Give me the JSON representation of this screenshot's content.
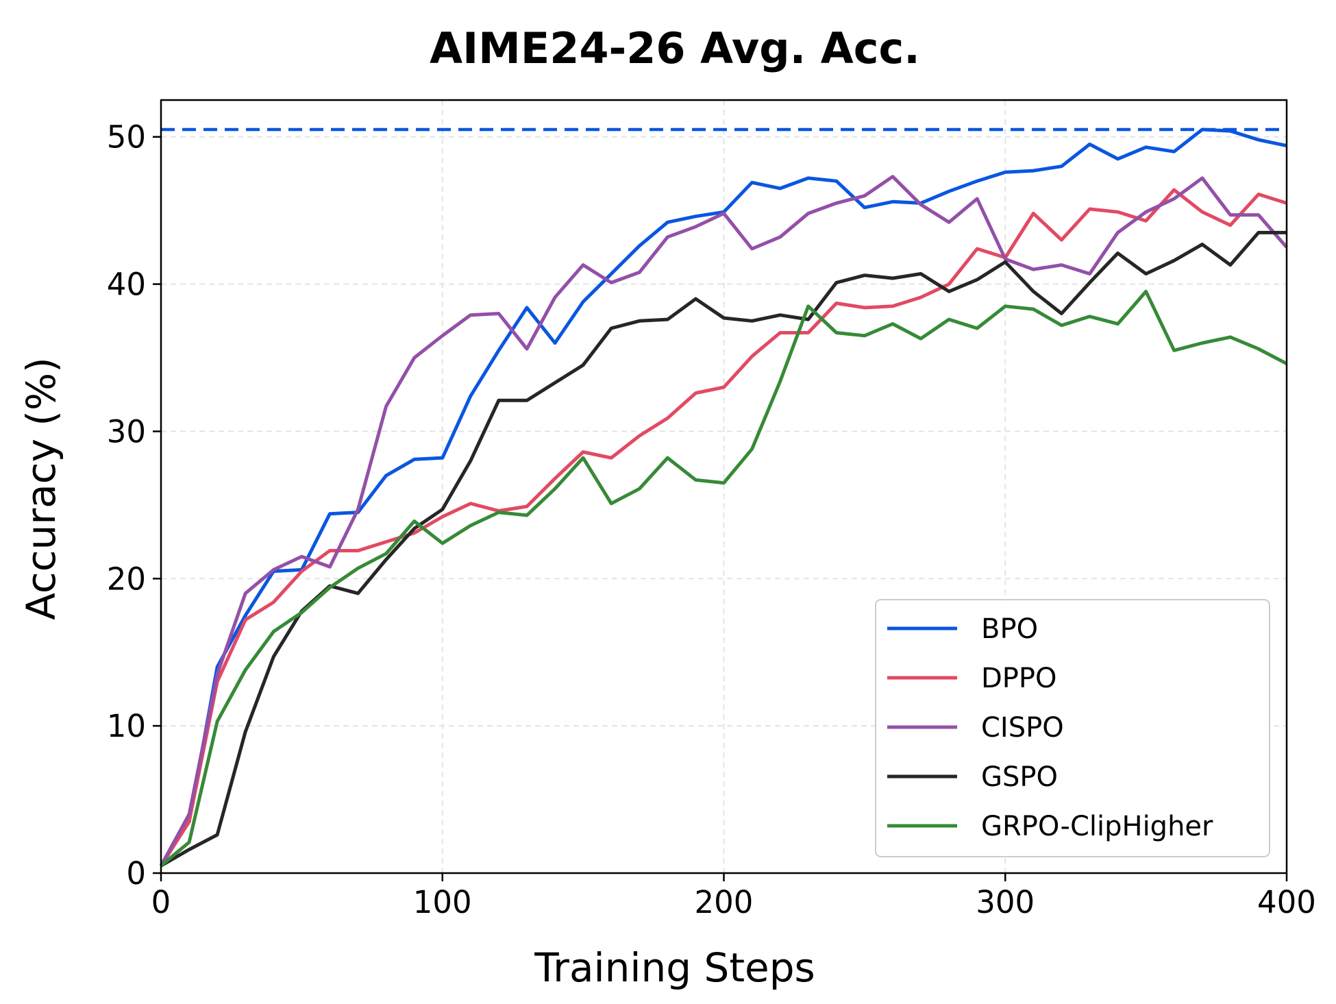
{
  "chart_data": {
    "type": "line",
    "title": "AIME24-26 Avg. Acc.",
    "xlabel": "Training Steps",
    "ylabel": "Accuracy (%)",
    "xlim": [
      0,
      400
    ],
    "ylim": [
      0,
      52.5
    ],
    "xticks": [
      0,
      100,
      200,
      300,
      400
    ],
    "yticks": [
      0,
      10,
      20,
      30,
      40,
      50
    ],
    "grid": true,
    "legend_position": "lower-right",
    "reference_line": {
      "y": 50.5,
      "style": "dashed",
      "color": "#0a56e0"
    },
    "x": [
      0,
      10,
      20,
      30,
      40,
      50,
      60,
      70,
      80,
      90,
      100,
      110,
      120,
      130,
      140,
      150,
      160,
      170,
      180,
      190,
      200,
      210,
      220,
      230,
      240,
      250,
      260,
      270,
      280,
      290,
      300,
      310,
      320,
      330,
      340,
      350,
      360,
      370,
      380,
      390,
      400
    ],
    "series": [
      {
        "name": "BPO",
        "color": "#0a56e0",
        "values": [
          0.5,
          3.5,
          14.0,
          17.5,
          20.5,
          20.6,
          24.4,
          24.5,
          27.0,
          28.1,
          28.2,
          32.4,
          35.5,
          38.4,
          36.0,
          38.8,
          40.7,
          42.6,
          44.2,
          44.6,
          44.9,
          46.9,
          46.5,
          47.2,
          47.0,
          45.2,
          45.6,
          45.5,
          46.3,
          47.0,
          47.6,
          47.7,
          48.0,
          49.5,
          48.5,
          49.3,
          49.0,
          50.5,
          50.4,
          49.8,
          49.4
        ]
      },
      {
        "name": "DPPO",
        "color": "#e24a63",
        "values": [
          0.5,
          3.5,
          13.0,
          17.2,
          18.4,
          20.5,
          21.9,
          21.9,
          22.5,
          23.1,
          24.2,
          25.1,
          24.6,
          24.9,
          26.8,
          28.6,
          28.2,
          29.7,
          30.9,
          32.6,
          33.0,
          35.1,
          36.7,
          36.7,
          38.7,
          38.4,
          38.5,
          39.1,
          40.0,
          42.4,
          41.8,
          44.8,
          43.0,
          45.1,
          44.9,
          44.3,
          46.4,
          44.9,
          44.0,
          46.1,
          45.5
        ]
      },
      {
        "name": "CISPO",
        "color": "#9350a8",
        "values": [
          0.5,
          4.0,
          13.5,
          19.0,
          20.6,
          21.5,
          20.8,
          24.7,
          31.7,
          35.0,
          36.5,
          37.9,
          38.0,
          35.6,
          39.1,
          41.3,
          40.1,
          40.8,
          43.2,
          43.9,
          44.8,
          42.4,
          43.2,
          44.8,
          45.5,
          46.0,
          47.3,
          45.4,
          44.2,
          45.8,
          41.7,
          41.0,
          41.3,
          40.7,
          43.5,
          44.9,
          45.8,
          47.2,
          44.7,
          44.7,
          42.5
        ]
      },
      {
        "name": "GSPO",
        "color": "#262626",
        "values": [
          0.5,
          1.6,
          2.6,
          9.6,
          14.7,
          17.8,
          19.5,
          19.0,
          21.3,
          23.4,
          24.7,
          28.0,
          32.1,
          32.1,
          33.3,
          34.5,
          37.0,
          37.5,
          37.6,
          39.0,
          37.7,
          37.5,
          37.9,
          37.6,
          40.1,
          40.6,
          40.4,
          40.7,
          39.5,
          40.3,
          41.5,
          39.5,
          38.0,
          40.1,
          42.1,
          40.7,
          41.6,
          42.7,
          41.3,
          43.5,
          43.5
        ]
      },
      {
        "name": "GRPO-ClipHigher",
        "color": "#378a37",
        "values": [
          0.5,
          2.1,
          10.3,
          13.8,
          16.4,
          17.7,
          19.4,
          20.7,
          21.7,
          23.9,
          22.4,
          23.6,
          24.5,
          24.3,
          26.1,
          28.2,
          25.1,
          26.1,
          28.2,
          26.7,
          26.5,
          28.8,
          33.4,
          38.5,
          36.7,
          36.5,
          37.3,
          36.3,
          37.6,
          37.0,
          38.5,
          38.3,
          37.2,
          37.8,
          37.3,
          39.5,
          35.5,
          36.0,
          36.4,
          35.6,
          34.6
        ]
      }
    ]
  }
}
